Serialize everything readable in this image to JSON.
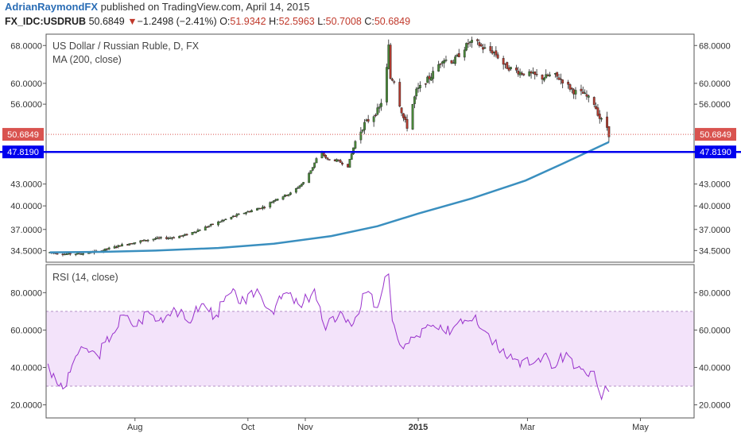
{
  "header": {
    "author": "AdrianRaymondFX",
    "published_text": "published on TradingView.com, April 14, 2015",
    "symbol": "FX_IDC:USDRUB",
    "last": "50.6849",
    "change_arrow": "▼",
    "change": "−1.2498 (−2.41%)",
    "o_label": "O:",
    "o": "51.9342",
    "h_label": "H:",
    "h": "52.5963",
    "l_label": "L:",
    "l": "50.7008",
    "c_label": "C:",
    "c": "50.6849"
  },
  "colors": {
    "up": "#4a8a3a",
    "down": "#b23a2e",
    "ma": "#3a8fbf",
    "rsi": "#9932cc",
    "rsi_band": "#f3e3fa",
    "hline": "#0000ee",
    "price_tag": "#d9534f"
  },
  "chart_data": [
    {
      "type": "candlestick",
      "title": "US Dollar / Russian Ruble, D, FX",
      "indicator_label": "MA (200, close)",
      "y_scale": "log",
      "ylim": [
        33.2,
        70.6
      ],
      "y_ticks": [
        "34.5000",
        "37.0000",
        "40.0000",
        "43.0000",
        "47.8190",
        "50.6849",
        "56.0000",
        "60.0000",
        "68.0000"
      ],
      "y_tick_values": [
        34.5,
        37.0,
        40.0,
        43.0,
        56.0,
        60.0,
        68.0
      ],
      "x_ticks": [
        "Aug",
        "Oct",
        "Nov",
        "2015",
        "Mar",
        "May"
      ],
      "x_tick_dates": [
        "2014-08-01",
        "2014-10-01",
        "2014-11-01",
        "2015-01-01",
        "2015-03-01",
        "2015-05-01"
      ],
      "x_range": [
        "2014-06-14",
        "2015-05-30"
      ],
      "last_price": 50.6849,
      "horizontal_line": 47.819,
      "horizontal_line_label": "47.8190",
      "last_price_label": "50.6849",
      "price_path": [
        [
          "2014-06-16",
          34.3
        ],
        [
          "2014-06-25",
          34.1
        ],
        [
          "2014-07-05",
          34.2
        ],
        [
          "2014-07-14",
          34.5
        ],
        [
          "2014-07-24",
          35.1
        ],
        [
          "2014-08-04",
          35.6
        ],
        [
          "2014-08-12",
          35.9
        ],
        [
          "2014-08-20",
          36.0
        ],
        [
          "2014-08-28",
          36.3
        ],
        [
          "2014-09-05",
          37.0
        ],
        [
          "2014-09-15",
          37.9
        ],
        [
          "2014-09-25",
          38.8
        ],
        [
          "2014-10-03",
          39.4
        ],
        [
          "2014-10-10",
          39.9
        ],
        [
          "2014-10-16",
          40.9
        ],
        [
          "2014-10-24",
          41.7
        ],
        [
          "2014-10-31",
          43.2
        ],
        [
          "2014-11-05",
          45.5
        ],
        [
          "2014-11-09",
          48.0
        ],
        [
          "2014-11-13",
          46.6
        ],
        [
          "2014-11-18",
          46.5
        ],
        [
          "2014-11-24",
          45.6
        ],
        [
          "2014-11-28",
          49.5
        ],
        [
          "2014-12-03",
          52.5
        ],
        [
          "2014-12-08",
          54.0
        ],
        [
          "2014-12-11",
          55.3
        ],
        [
          "2014-12-13",
          57.5
        ],
        [
          "2014-12-15",
          63.0
        ],
        [
          "2014-12-16",
          67.8
        ],
        [
          "2014-12-17",
          61.0
        ],
        [
          "2014-12-19",
          60.7
        ],
        [
          "2014-12-22",
          56.0
        ],
        [
          "2014-12-24",
          53.5
        ],
        [
          "2014-12-26",
          52.0
        ],
        [
          "2014-12-29",
          56.0
        ],
        [
          "2014-12-31",
          58.5
        ],
        [
          "2015-01-08",
          61.5
        ],
        [
          "2015-01-14",
          65.0
        ],
        [
          "2015-01-20",
          64.5
        ],
        [
          "2015-01-28",
          68.5
        ],
        [
          "2015-02-01",
          68.9
        ],
        [
          "2015-02-05",
          67.4
        ],
        [
          "2015-02-11",
          66.5
        ],
        [
          "2015-02-17",
          63.5
        ],
        [
          "2015-02-25",
          62.2
        ],
        [
          "2015-03-03",
          61.8
        ],
        [
          "2015-03-09",
          61.1
        ],
        [
          "2015-03-15",
          61.8
        ],
        [
          "2015-03-20",
          60.5
        ],
        [
          "2015-03-26",
          58.4
        ],
        [
          "2015-03-31",
          58.0
        ],
        [
          "2015-04-06",
          56.2
        ],
        [
          "2015-04-09",
          53.5
        ],
        [
          "2015-04-13",
          51.9
        ],
        [
          "2015-04-14",
          50.68
        ]
      ],
      "ma_path": [
        [
          "2014-06-16",
          34.3
        ],
        [
          "2014-07-14",
          34.35
        ],
        [
          "2014-08-12",
          34.5
        ],
        [
          "2014-09-15",
          34.8
        ],
        [
          "2014-10-15",
          35.3
        ],
        [
          "2014-11-15",
          36.2
        ],
        [
          "2014-12-10",
          37.4
        ],
        [
          "2015-01-01",
          39.0
        ],
        [
          "2015-01-30",
          41.0
        ],
        [
          "2015-02-28",
          43.5
        ],
        [
          "2015-03-20",
          46.0
        ],
        [
          "2015-04-14",
          49.4
        ]
      ]
    },
    {
      "type": "line",
      "title": "RSI (14, close)",
      "ylim": [
        13,
        95
      ],
      "y_ticks": [
        "20.0000",
        "40.0000",
        "60.0000",
        "80.0000"
      ],
      "y_tick_values": [
        20,
        40,
        60,
        80
      ],
      "bands": [
        30,
        70
      ],
      "series": [
        {
          "values": [
            [
              "2014-06-15",
              42
            ],
            [
              "2014-06-20",
              31
            ],
            [
              "2014-06-25",
              30
            ],
            [
              "2014-06-30",
              46
            ],
            [
              "2014-07-06",
              50
            ],
            [
              "2014-07-12",
              46
            ],
            [
              "2014-07-20",
              58
            ],
            [
              "2014-07-26",
              68
            ],
            [
              "2014-08-02",
              62
            ],
            [
              "2014-08-08",
              70
            ],
            [
              "2014-08-14",
              65
            ],
            [
              "2014-08-22",
              72
            ],
            [
              "2014-08-30",
              64
            ],
            [
              "2014-09-06",
              74
            ],
            [
              "2014-09-14",
              68
            ],
            [
              "2014-09-22",
              80
            ],
            [
              "2014-09-30",
              74
            ],
            [
              "2014-10-06",
              82
            ],
            [
              "2014-10-14",
              70
            ],
            [
              "2014-10-22",
              80
            ],
            [
              "2014-10-30",
              72
            ],
            [
              "2014-11-06",
              82
            ],
            [
              "2014-11-12",
              60
            ],
            [
              "2014-11-20",
              70
            ],
            [
              "2014-11-26",
              62
            ],
            [
              "2014-12-04",
              80
            ],
            [
              "2014-12-10",
              72
            ],
            [
              "2014-12-16",
              90
            ],
            [
              "2014-12-18",
              65
            ],
            [
              "2014-12-24",
              50
            ],
            [
              "2014-12-30",
              56
            ],
            [
              "2015-01-08",
              62
            ],
            [
              "2015-01-16",
              58
            ],
            [
              "2015-01-24",
              66
            ],
            [
              "2015-02-01",
              68
            ],
            [
              "2015-02-08",
              58
            ],
            [
              "2015-02-16",
              50
            ],
            [
              "2015-02-24",
              44
            ],
            [
              "2015-03-04",
              42
            ],
            [
              "2015-03-10",
              47
            ],
            [
              "2015-03-16",
              40
            ],
            [
              "2015-03-22",
              48
            ],
            [
              "2015-03-28",
              40
            ],
            [
              "2015-04-02",
              36
            ],
            [
              "2015-04-06",
              38
            ],
            [
              "2015-04-10",
              23
            ],
            [
              "2015-04-12",
              30
            ],
            [
              "2015-04-14",
              27
            ]
          ]
        }
      ]
    }
  ]
}
